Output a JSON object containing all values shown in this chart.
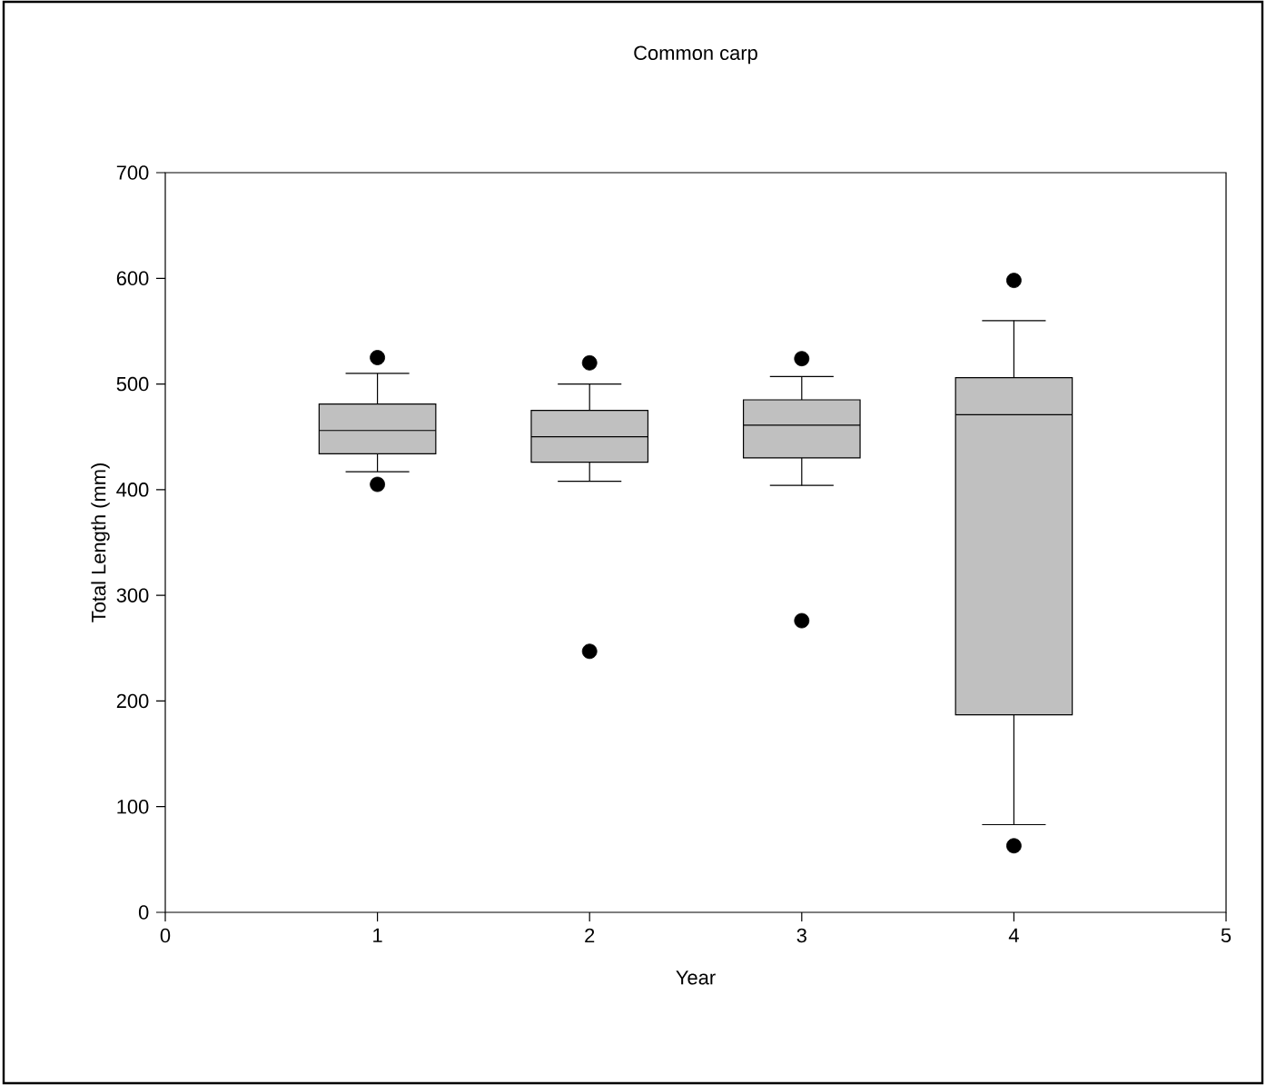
{
  "chart_data": {
    "type": "box",
    "title": "Common carp",
    "xlabel": "Year",
    "ylabel": "Total Length (mm)",
    "x": [
      1,
      2,
      3,
      4
    ],
    "xlim": [
      0,
      5
    ],
    "xticks": [
      0,
      1,
      2,
      3,
      4,
      5
    ],
    "ylim": [
      0,
      700
    ],
    "yticks": [
      0,
      100,
      200,
      300,
      400,
      500,
      600,
      700
    ],
    "color": "#c0c0c0",
    "marker": "circle",
    "boxes": [
      {
        "low": 417,
        "q1": 434,
        "median": 456,
        "q3": 481,
        "high": 510,
        "outliers": [
          525,
          405
        ]
      },
      {
        "low": 408,
        "q1": 426,
        "median": 450,
        "q3": 475,
        "high": 500,
        "outliers": [
          520,
          247
        ]
      },
      {
        "low": 404,
        "q1": 430,
        "median": 461,
        "q3": 485,
        "high": 507,
        "outliers": [
          524,
          276
        ]
      },
      {
        "low": 83,
        "q1": 187,
        "median": 471,
        "q3": 506,
        "high": 560,
        "outliers": [
          598,
          63
        ]
      }
    ]
  }
}
